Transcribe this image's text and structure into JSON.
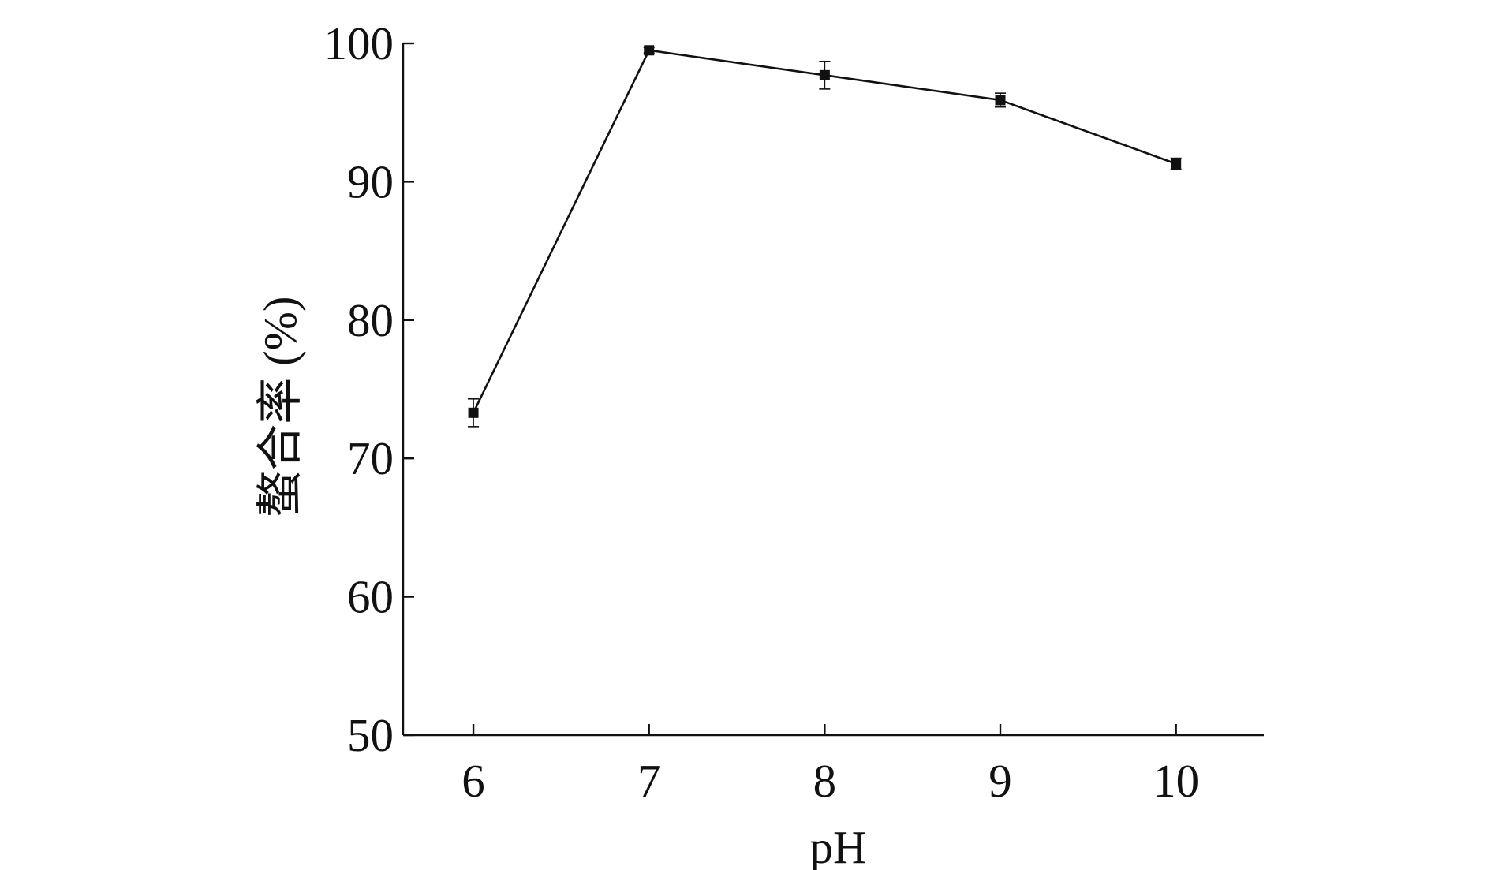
{
  "chart_data": {
    "type": "line",
    "xlabel": "pH",
    "ylabel": "螯合率 (%)",
    "xlim": [
      5.6,
      10.5
    ],
    "ylim": [
      50,
      100
    ],
    "x_ticks": [
      6,
      7,
      8,
      9,
      10
    ],
    "x_tick_labels": [
      "6",
      "7",
      "8",
      "9",
      "10"
    ],
    "y_ticks": [
      50,
      60,
      70,
      80,
      90,
      100
    ],
    "y_tick_labels": [
      "50",
      "60",
      "70",
      "80",
      "90",
      "100"
    ],
    "grid": false,
    "legend": "none",
    "series": [
      {
        "x": [
          6,
          7,
          8,
          9,
          10
        ],
        "y": [
          73.3,
          99.5,
          97.7,
          95.9,
          91.3
        ],
        "error": [
          1.0,
          0.2,
          1.0,
          0.5,
          0.4
        ],
        "marker": "square",
        "color": "#111111"
      }
    ]
  }
}
